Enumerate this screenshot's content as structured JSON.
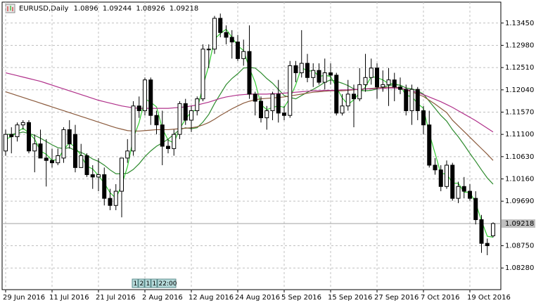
{
  "chart_data": {
    "type": "candlestick",
    "title": "EURUSD,Daily",
    "categories": [
      "29 Jun 2016",
      null,
      null,
      null,
      null,
      null,
      null,
      null,
      "11 Jul 2016",
      null,
      null,
      null,
      null,
      null,
      null,
      null,
      "21 Jul 2016",
      null,
      null,
      null,
      null,
      null,
      null,
      null,
      "2 Aug 2016",
      null,
      null,
      null,
      null,
      null,
      null,
      null,
      "12 Aug 2016",
      null,
      null,
      null,
      null,
      null,
      null,
      null,
      "24 Aug 2016",
      null,
      null,
      null,
      null,
      null,
      null,
      null,
      "5 Sep 2016",
      null,
      null,
      null,
      null,
      null,
      null,
      null,
      "15 Sep 2016",
      null,
      null,
      null,
      null,
      null,
      null,
      null,
      "27 Sep 2016",
      null,
      null,
      null,
      null,
      null,
      null,
      null,
      "7 Oct 2016",
      null,
      null,
      null,
      null,
      null,
      null,
      null,
      "19 Oct 2016",
      null,
      null,
      null,
      null
    ],
    "open": [
      1.1075,
      1.111,
      1.1105,
      1.113,
      1.1135,
      1.1075,
      1.109,
      1.106,
      1.1055,
      1.105,
      1.106,
      1.112,
      1.111,
      1.104,
      1.1065,
      1.1025,
      1.102,
      1.1025,
      1.0975,
      1.096,
      1.099,
      1.106,
      1.1075,
      1.117,
      1.116,
      1.1225,
      1.115,
      1.113,
      1.1085,
      1.108,
      1.111,
      1.1175,
      1.114,
      1.116,
      1.1185,
      1.129,
      1.129,
      1.1355,
      1.1325,
      1.1315,
      1.1305,
      1.127,
      1.1285,
      1.1195,
      1.118,
      1.1145,
      1.116,
      1.1195,
      1.1155,
      1.115,
      1.1255,
      1.124,
      1.126,
      1.123,
      1.1245,
      1.122,
      1.124,
      1.1235,
      1.1155,
      1.117,
      1.1195,
      1.1185,
      1.1215,
      1.123,
      1.125,
      1.121,
      1.1215,
      1.1225,
      1.121,
      1.1205,
      1.116,
      1.1205,
      1.116,
      1.113,
      1.1045,
      1.1035,
      1.1,
      1.1045,
      1.0975,
      1.1,
      1.099,
      1.0975,
      1.093,
      1.088,
      1.0896
    ],
    "high": [
      1.112,
      1.1125,
      1.1135,
      1.114,
      1.114,
      1.111,
      1.112,
      1.11,
      1.108,
      1.108,
      1.1125,
      1.114,
      1.113,
      1.109,
      1.107,
      1.1045,
      1.106,
      1.104,
      1.0995,
      1.1005,
      1.106,
      1.11,
      1.118,
      1.119,
      1.123,
      1.123,
      1.116,
      1.116,
      1.11,
      1.112,
      1.118,
      1.1185,
      1.117,
      1.119,
      1.13,
      1.13,
      1.136,
      1.1365,
      1.134,
      1.133,
      1.132,
      1.131,
      1.134,
      1.12,
      1.119,
      1.117,
      1.12,
      1.1225,
      1.117,
      1.1265,
      1.1265,
      1.133,
      1.128,
      1.126,
      1.126,
      1.127,
      1.126,
      1.124,
      1.1195,
      1.1225,
      1.1215,
      1.125,
      1.128,
      1.127,
      1.126,
      1.1245,
      1.125,
      1.124,
      1.123,
      1.1215,
      1.1215,
      1.121,
      1.117,
      1.116,
      1.106,
      1.1045,
      1.1055,
      1.105,
      1.101,
      1.102,
      1.1005,
      1.099,
      1.094,
      1.089,
      1.09244
    ],
    "low": [
      1.1065,
      1.107,
      1.1095,
      1.112,
      1.107,
      1.103,
      1.106,
      1.1,
      1.104,
      1.1045,
      1.105,
      1.108,
      1.103,
      1.104,
      1.102,
      1.0995,
      1.099,
      1.096,
      1.095,
      1.095,
      1.0935,
      1.105,
      1.1065,
      1.1145,
      1.115,
      1.113,
      1.111,
      1.1045,
      1.107,
      1.1065,
      1.11,
      1.113,
      1.1115,
      1.115,
      1.118,
      1.125,
      1.128,
      1.1315,
      1.13,
      1.127,
      1.1265,
      1.1255,
      1.1185,
      1.115,
      1.1135,
      1.112,
      1.114,
      1.1135,
      1.114,
      1.1145,
      1.122,
      1.123,
      1.122,
      1.121,
      1.1215,
      1.1205,
      1.1215,
      1.115,
      1.115,
      1.116,
      1.1125,
      1.118,
      1.12,
      1.1215,
      1.1185,
      1.12,
      1.117,
      1.118,
      1.1195,
      1.115,
      1.113,
      1.114,
      1.111,
      1.104,
      1.1025,
      1.099,
      1.0995,
      1.097,
      1.0965,
      1.0975,
      1.097,
      1.092,
      1.086,
      1.0855,
      1.08926
    ],
    "close": [
      1.111,
      1.1105,
      1.113,
      1.1135,
      1.1075,
      1.109,
      1.106,
      1.1055,
      1.105,
      1.1065,
      1.112,
      1.109,
      1.104,
      1.1065,
      1.1025,
      1.102,
      1.1025,
      1.0975,
      1.096,
      1.099,
      1.106,
      1.1075,
      1.117,
      1.116,
      1.1225,
      1.115,
      1.113,
      1.1085,
      1.108,
      1.111,
      1.1175,
      1.114,
      1.116,
      1.1185,
      1.129,
      1.129,
      1.1355,
      1.1325,
      1.1315,
      1.1305,
      1.127,
      1.1285,
      1.1195,
      1.118,
      1.1145,
      1.116,
      1.1195,
      1.1155,
      1.115,
      1.1255,
      1.124,
      1.126,
      1.123,
      1.1245,
      1.122,
      1.124,
      1.1235,
      1.1155,
      1.117,
      1.1195,
      1.1185,
      1.1215,
      1.123,
      1.125,
      1.121,
      1.1215,
      1.1225,
      1.121,
      1.1205,
      1.116,
      1.1205,
      1.116,
      1.113,
      1.1045,
      1.1035,
      1.1,
      1.1045,
      1.0975,
      1.1,
      1.099,
      1.0975,
      1.093,
      1.088,
      1.0875,
      1.09218
    ],
    "up_color": "#ffffff",
    "down_color": "#000000",
    "wick_color": "#000000",
    "lines": [
      {
        "color": "#33cc33",
        "values": [
          1.11,
          1.1105,
          1.1115,
          1.1123,
          1.1113,
          1.11,
          1.1075,
          1.1068,
          1.1055,
          1.1057,
          1.1078,
          1.1092,
          1.1083,
          1.1065,
          1.1043,
          1.1037,
          1.1023,
          1.1007,
          1.0987,
          1.0975,
          1.1003,
          1.1042,
          1.1102,
          1.1135,
          1.1185,
          1.1178,
          1.1168,
          1.1122,
          1.1098,
          1.1092,
          1.1122,
          1.1142,
          1.1158,
          1.1162,
          1.1212,
          1.1255,
          1.1311,
          1.1323,
          1.1332,
          1.1315,
          1.1297,
          1.1287,
          1.125,
          1.122,
          1.1173,
          1.1162,
          1.1167,
          1.117,
          1.1167,
          1.1187,
          1.1215,
          1.1252,
          1.1243,
          1.1245,
          1.1232,
          1.1235,
          1.1232,
          1.121,
          1.1187,
          1.1173,
          1.1183,
          1.1198,
          1.121,
          1.1232,
          1.123,
          1.1225,
          1.1217,
          1.1217,
          1.1213,
          1.1192,
          1.119,
          1.1175,
          1.1165,
          1.1112,
          1.107,
          1.1027,
          1.1027,
          1.1007,
          1.1007,
          1.0988,
          1.0988,
          1.0965,
          1.0928,
          1.0895,
          1.0893
        ]
      },
      {
        "color": "#2e8b2e",
        "values": [
          1.111,
          1.111,
          1.1112,
          1.1115,
          1.1112,
          1.1108,
          1.1102,
          1.1095,
          1.1088,
          1.1082,
          1.108,
          1.1082,
          1.1076,
          1.1072,
          1.1066,
          1.1058,
          1.1053,
          1.1045,
          1.1035,
          1.1027,
          1.1027,
          1.1028,
          1.1036,
          1.1048,
          1.1063,
          1.1075,
          1.1085,
          1.1092,
          1.11,
          1.111,
          1.112,
          1.1124,
          1.1122,
          1.1124,
          1.1136,
          1.1152,
          1.1175,
          1.1195,
          1.1215,
          1.1228,
          1.1238,
          1.125,
          1.1251,
          1.125,
          1.124,
          1.1228,
          1.1218,
          1.1205,
          1.1192,
          1.1188,
          1.1185,
          1.1192,
          1.1199,
          1.1205,
          1.1212,
          1.122,
          1.1225,
          1.1222,
          1.1218,
          1.1213,
          1.1206,
          1.1203,
          1.1202,
          1.1203,
          1.1206,
          1.121,
          1.1213,
          1.1215,
          1.1214,
          1.1208,
          1.1206,
          1.1202,
          1.1195,
          1.118,
          1.1165,
          1.115,
          1.1138,
          1.112,
          1.1105,
          1.1088,
          1.107,
          1.1053,
          1.1035,
          1.1018,
          1.1005
        ]
      },
      {
        "color": "#8b5a3c",
        "values": [
          1.12,
          1.1196,
          1.1192,
          1.1188,
          1.1184,
          1.118,
          1.1176,
          1.1172,
          1.1168,
          1.1164,
          1.116,
          1.1156,
          1.1152,
          1.1148,
          1.1144,
          1.114,
          1.1136,
          1.1132,
          1.1128,
          1.1124,
          1.1121,
          1.1118,
          1.1117,
          1.1117,
          1.1118,
          1.1119,
          1.112,
          1.112,
          1.112,
          1.1121,
          1.1122,
          1.1123,
          1.1124,
          1.1126,
          1.113,
          1.1135,
          1.1142,
          1.115,
          1.1157,
          1.1164,
          1.117,
          1.1176,
          1.118,
          1.1183,
          1.1185,
          1.1186,
          1.1187,
          1.1188,
          1.1189,
          1.1191,
          1.1193,
          1.1195,
          1.1197,
          1.1199,
          1.12,
          1.1201,
          1.1202,
          1.1202,
          1.1202,
          1.1203,
          1.1204,
          1.1205,
          1.1206,
          1.1207,
          1.1208,
          1.1209,
          1.1209,
          1.121,
          1.1208,
          1.1204,
          1.12,
          1.1195,
          1.119,
          1.1182,
          1.1174,
          1.1165,
          1.1156,
          1.114,
          1.1128,
          1.1116,
          1.1104,
          1.1092,
          1.108,
          1.1068,
          1.1055
        ]
      },
      {
        "color": "#b0308a",
        "values": [
          1.124,
          1.1237,
          1.1234,
          1.1231,
          1.1228,
          1.1225,
          1.1222,
          1.1218,
          1.1214,
          1.121,
          1.1206,
          1.1202,
          1.1198,
          1.1194,
          1.119,
          1.1186,
          1.1182,
          1.1179,
          1.1176,
          1.1173,
          1.117,
          1.1168,
          1.1166,
          1.1165,
          1.1165,
          1.1165,
          1.1165,
          1.1165,
          1.1165,
          1.1166,
          1.1167,
          1.1168,
          1.117,
          1.1172,
          1.1175,
          1.1178,
          1.1182,
          1.1186,
          1.1189,
          1.1191,
          1.1193,
          1.1194,
          1.1195,
          1.1195,
          1.1195,
          1.1195,
          1.1196,
          1.1196,
          1.1197,
          1.1198,
          1.1199,
          1.12,
          1.1201,
          1.1202,
          1.1202,
          1.1203,
          1.1203,
          1.1203,
          1.1204,
          1.1204,
          1.1205,
          1.1205,
          1.1206,
          1.1206,
          1.1207,
          1.1207,
          1.1208,
          1.1208,
          1.1207,
          1.1205,
          1.1202,
          1.1198,
          1.1194,
          1.1189,
          1.1184,
          1.1179,
          1.1173,
          1.1167,
          1.116,
          1.1153,
          1.1146,
          1.1139,
          1.1131,
          1.1123,
          1.1115
        ]
      }
    ],
    "ylim": [
      1.07823,
      1.13892
    ],
    "yticks": [
      {
        "value": 1.1345,
        "label": "1.13450"
      },
      {
        "value": 1.1298,
        "label": "1.12980"
      },
      {
        "value": 1.1251,
        "label": "1.12510"
      },
      {
        "value": 1.1204,
        "label": "1.12040"
      },
      {
        "value": 1.1157,
        "label": "1.11570"
      },
      {
        "value": 1.111,
        "label": "1.11100"
      },
      {
        "value": 1.1063,
        "label": "1.10630"
      },
      {
        "value": 1.1016,
        "label": "1.10160"
      },
      {
        "value": 1.0969,
        "label": "1.09690"
      },
      {
        "value": 1.0875,
        "label": "1.08750"
      },
      {
        "value": 1.0828,
        "label": "1.08280"
      }
    ],
    "grid": true,
    "footer_tags": [
      "1",
      "2",
      "1",
      "1",
      "22:00"
    ]
  }
}
